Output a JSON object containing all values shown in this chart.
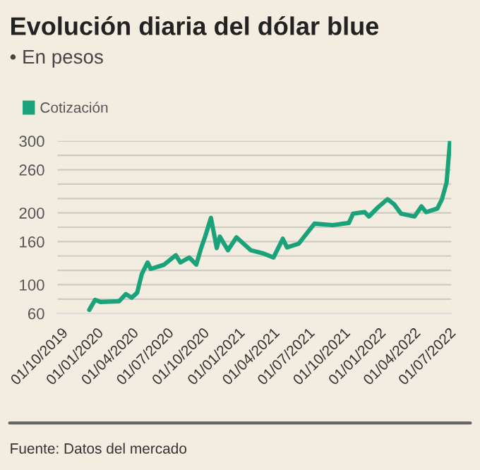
{
  "chart_data": {
    "type": "line",
    "title": "Evolución diaria del dólar blue",
    "subtitle": "• En pesos",
    "x": [
      "2019-12-13",
      "2019-12-28",
      "2020-01-11",
      "2020-02-28",
      "2020-03-17",
      "2020-04-01",
      "2020-04-15",
      "2020-04-27",
      "2020-05-12",
      "2020-05-20",
      "2020-06-24",
      "2020-07-24",
      "2020-08-05",
      "2020-08-28",
      "2020-09-15",
      "2020-09-27",
      "2020-10-08",
      "2020-10-23",
      "2020-11-07",
      "2020-11-15",
      "2020-12-06",
      "2020-12-28",
      "2021-02-03",
      "2021-03-05",
      "2021-04-03",
      "2021-04-27",
      "2021-05-08",
      "2021-06-07",
      "2021-07-18",
      "2021-09-03",
      "2021-10-15",
      "2021-10-26",
      "2021-11-25",
      "2021-12-06",
      "2021-12-30",
      "2022-01-23",
      "2022-02-09",
      "2022-02-27",
      "2022-04-03",
      "2022-04-21",
      "2022-05-03",
      "2022-06-01",
      "2022-06-13",
      "2022-06-25",
      "2022-07-04"
    ],
    "series": [
      {
        "name": "Cotización",
        "color": "#1aa37a",
        "values": [
          65,
          79,
          76,
          77,
          87,
          82,
          89,
          115,
          131,
          122,
          128,
          141,
          131,
          138,
          128,
          150,
          167,
          193,
          151,
          167,
          148,
          166,
          148,
          144,
          138,
          164,
          152,
          157,
          185,
          183,
          186,
          199,
          201,
          195,
          208,
          219,
          212,
          199,
          195,
          209,
          201,
          206,
          219,
          242,
          300
        ]
      }
    ],
    "xlim": [
      "2019-09-22",
      "2022-07-07"
    ],
    "xticks": [
      {
        "value": "2019-10-01",
        "label": "01/10/2019"
      },
      {
        "value": "2020-01-01",
        "label": "01/01/2020"
      },
      {
        "value": "2020-04-01",
        "label": "01/04/2020"
      },
      {
        "value": "2020-07-01",
        "label": "01/07/2020"
      },
      {
        "value": "2020-10-01",
        "label": "01/10/2020"
      },
      {
        "value": "2021-01-01",
        "label": "01/01/2021"
      },
      {
        "value": "2021-04-01",
        "label": "01/04/2021"
      },
      {
        "value": "2021-07-01",
        "label": "01/07/2021"
      },
      {
        "value": "2021-10-01",
        "label": "01/10/2021"
      },
      {
        "value": "2022-01-01",
        "label": "01/01/2022"
      },
      {
        "value": "2022-04-01",
        "label": "01/04/2022"
      },
      {
        "value": "2022-07-01",
        "label": "01/07/2022"
      }
    ],
    "ylim": [
      60,
      300
    ],
    "yticks": [
      60,
      {
        "value": 80,
        "label": null
      },
      100,
      {
        "value": 120,
        "label": null
      },
      {
        "value": 140,
        "label": null
      },
      160,
      {
        "value": 180,
        "label": null
      },
      200,
      {
        "value": 220,
        "label": null
      },
      {
        "value": 240,
        "label": null
      },
      260,
      {
        "value": 280,
        "label": null
      },
      300
    ],
    "grid": "y",
    "legend": "top left",
    "annotations": [
      "Fuente: Datos del mercado"
    ]
  }
}
